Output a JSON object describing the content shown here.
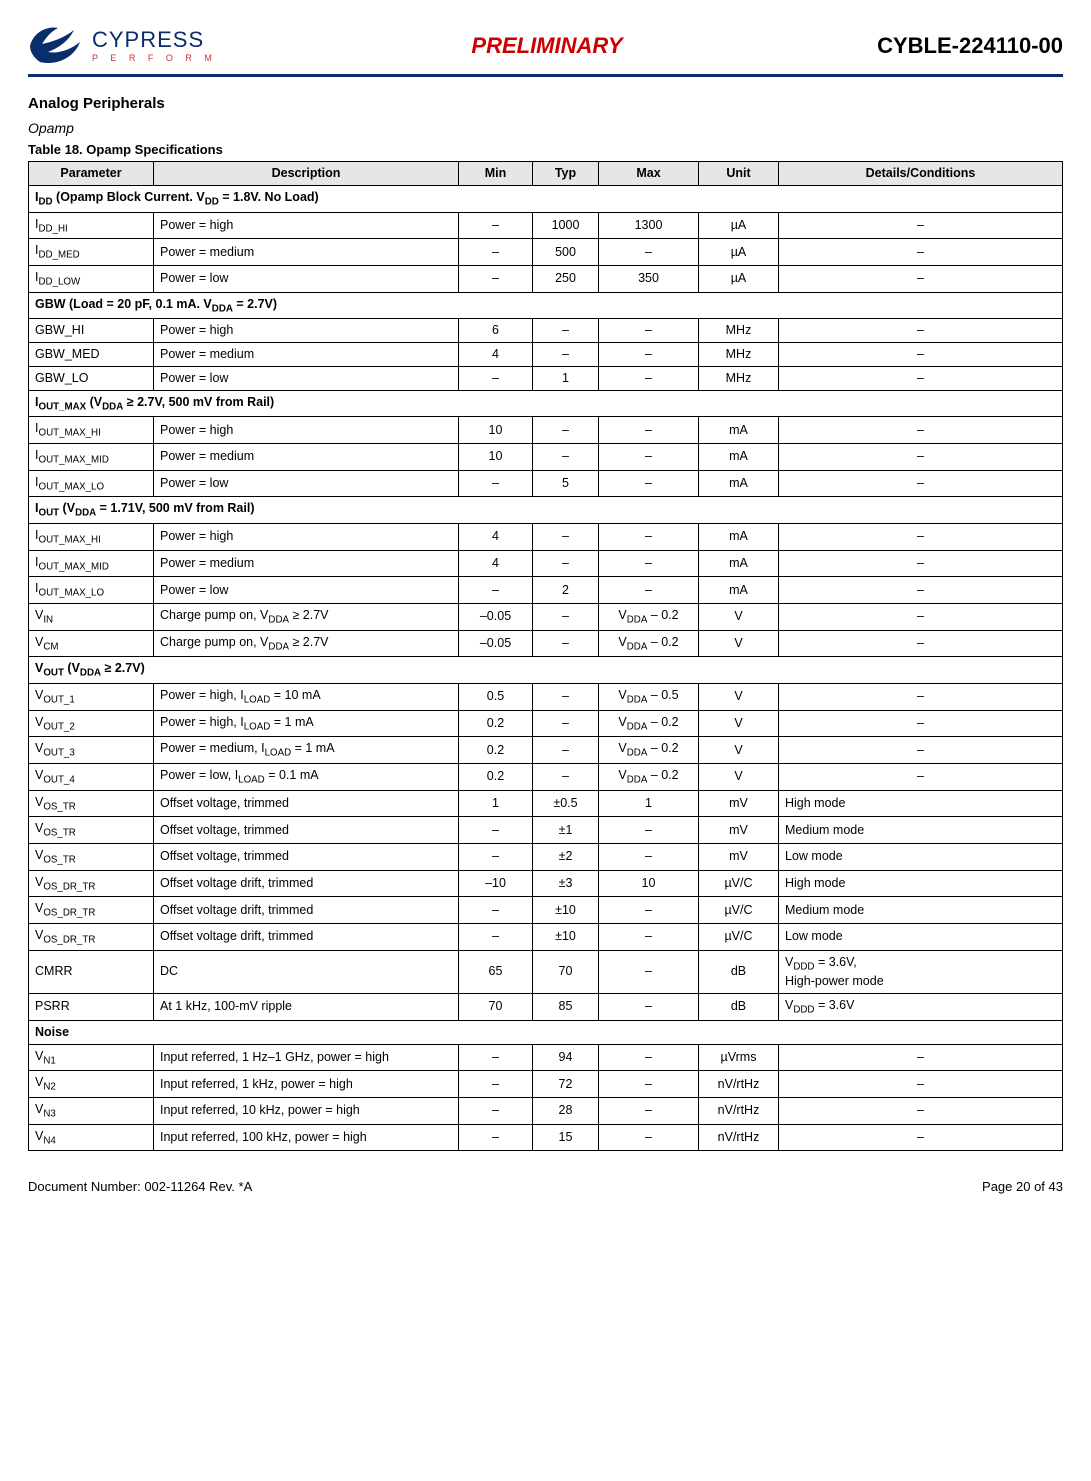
{
  "header": {
    "brand": "CYPRESS",
    "perform": "P E R F O R M",
    "preliminary": "PRELIMINARY",
    "part_number": "CYBLE-224110-00"
  },
  "section_title": "Analog Peripherals",
  "subsection_title": "Opamp",
  "table_caption": "Table 18.  Opamp Specifications",
  "columns": [
    "Parameter",
    "Description",
    "Min",
    "Typ",
    "Max",
    "Unit",
    "Details/Conditions"
  ],
  "rows": [
    {
      "type": "group",
      "html": "I<sub>DD</sub> (Opamp Block Current. V<sub>DD</sub> = 1.8V. No Load)"
    },
    {
      "type": "data",
      "param_html": "I<sub>DD_HI</sub>",
      "desc_html": "Power = high",
      "min": "–",
      "typ": "1000",
      "max": "1300",
      "unit": "µA",
      "det": "–"
    },
    {
      "type": "data",
      "param_html": "I<sub>DD_MED</sub>",
      "desc_html": "Power = medium",
      "min": "–",
      "typ": "500",
      "max": "–",
      "unit": "µA",
      "det": "–"
    },
    {
      "type": "data",
      "param_html": "I<sub>DD_LOW</sub>",
      "desc_html": "Power = low",
      "min": "–",
      "typ": "250",
      "max": "350",
      "unit": "µA",
      "det": "–"
    },
    {
      "type": "group",
      "html": "GBW (Load = 20 pF, 0.1 mA. V<sub>DDA</sub> = 2.7V)"
    },
    {
      "type": "data",
      "param_html": "GBW_HI",
      "desc_html": "Power = high",
      "min": "6",
      "typ": "–",
      "max": "–",
      "unit": "MHz",
      "det": "–"
    },
    {
      "type": "data",
      "param_html": "GBW_MED",
      "desc_html": "Power = medium",
      "min": "4",
      "typ": "–",
      "max": "–",
      "unit": "MHz",
      "det": "–"
    },
    {
      "type": "data",
      "param_html": "GBW_LO",
      "desc_html": "Power = low",
      "min": "–",
      "typ": "1",
      "max": "–",
      "unit": "MHz",
      "det": "–"
    },
    {
      "type": "group",
      "html": "I<sub>OUT_MAX</sub> (V<sub>DDA</sub> ≥ 2.7V, 500 mV from Rail)"
    },
    {
      "type": "data",
      "param_html": "I<sub>OUT_MAX_HI</sub>",
      "desc_html": "Power = high",
      "min": "10",
      "typ": "–",
      "max": "–",
      "unit": "mA",
      "det": "–"
    },
    {
      "type": "data",
      "param_html": "I<sub>OUT_MAX_MID</sub>",
      "desc_html": "Power = medium",
      "min": "10",
      "typ": "–",
      "max": "–",
      "unit": "mA",
      "det": "–"
    },
    {
      "type": "data",
      "param_html": "I<sub>OUT_MAX_LO</sub>",
      "desc_html": "Power = low",
      "min": "–",
      "typ": "5",
      "max": "–",
      "unit": "mA",
      "det": "–"
    },
    {
      "type": "group",
      "html": "I<sub>OUT</sub> (V<sub>DDA</sub> = 1.71V, 500 mV from Rail)"
    },
    {
      "type": "data",
      "param_html": "I<sub>OUT_MAX_HI</sub>",
      "desc_html": "Power = high",
      "min": "4",
      "typ": "–",
      "max": "–",
      "unit": "mA",
      "det": "–"
    },
    {
      "type": "data",
      "param_html": "I<sub>OUT_MAX_MID</sub>",
      "desc_html": "Power = medium",
      "min": "4",
      "typ": "–",
      "max": "–",
      "unit": "mA",
      "det": "–"
    },
    {
      "type": "data",
      "param_html": "I<sub>OUT_MAX_LO</sub>",
      "desc_html": "Power = low",
      "min": "–",
      "typ": "2",
      "max": "–",
      "unit": "mA",
      "det": "–"
    },
    {
      "type": "data",
      "param_html": "V<sub>IN</sub>",
      "desc_html": "Charge pump on, V<sub>DDA</sub> ≥ 2.7V",
      "min": "–0.05",
      "typ": "–",
      "max_html": "V<sub>DDA</sub> – 0.2",
      "unit": "V",
      "det": "–"
    },
    {
      "type": "data",
      "param_html": "V<sub>CM</sub>",
      "desc_html": "Charge pump on, V<sub>DDA</sub> ≥ 2.7V",
      "min": "–0.05",
      "typ": "–",
      "max_html": "V<sub>DDA</sub> – 0.2",
      "unit": "V",
      "det": "–"
    },
    {
      "type": "group",
      "html": "V<sub>OUT</sub> (V<sub>DDA</sub> ≥ 2.7V)"
    },
    {
      "type": "data",
      "param_html": "V<sub>OUT_1</sub>",
      "desc_html": "Power = high, I<sub>LOAD</sub> = 10 mA",
      "min": "0.5",
      "typ": "–",
      "max_html": "V<sub>DDA</sub> – 0.5",
      "unit": "V",
      "det": "–"
    },
    {
      "type": "data",
      "param_html": "V<sub>OUT_2</sub>",
      "desc_html": "Power = high, I<sub>LOAD</sub> = 1 mA",
      "min": "0.2",
      "typ": "–",
      "max_html": "V<sub>DDA</sub> – 0.2",
      "unit": "V",
      "det": "–"
    },
    {
      "type": "data",
      "param_html": "V<sub>OUT_3</sub>",
      "desc_html": "Power = medium, I<sub>LOAD</sub> = 1 mA",
      "min": "0.2",
      "typ": "–",
      "max_html": "V<sub>DDA</sub> – 0.2",
      "unit": "V",
      "det": "–"
    },
    {
      "type": "data",
      "param_html": "V<sub>OUT_4</sub>",
      "desc_html": "Power = low, I<sub>LOAD</sub> = 0.1 mA",
      "min": "0.2",
      "typ": "–",
      "max_html": "V<sub>DDA</sub> – 0.2",
      "unit": "V",
      "det": "–"
    },
    {
      "type": "data",
      "param_html": "V<sub>OS_TR</sub>",
      "desc_html": "Offset voltage, trimmed",
      "min": "1",
      "typ": "±0.5",
      "max": "1",
      "unit": "mV",
      "det": "High mode"
    },
    {
      "type": "data",
      "param_html": "V<sub>OS_TR</sub>",
      "desc_html": "Offset voltage, trimmed",
      "min": "–",
      "typ": "±1",
      "max": "–",
      "unit": "mV",
      "det": "Medium mode"
    },
    {
      "type": "data",
      "param_html": "V<sub>OS_TR</sub>",
      "desc_html": "Offset voltage, trimmed",
      "min": "–",
      "typ": "±2",
      "max": "–",
      "unit": "mV",
      "det": "Low mode"
    },
    {
      "type": "data",
      "param_html": "V<sub>OS_DR_TR</sub>",
      "desc_html": "Offset voltage drift, trimmed",
      "min": "–10",
      "typ": "±3",
      "max": "10",
      "unit": "µV/C",
      "det": "High mode"
    },
    {
      "type": "data",
      "param_html": "V<sub>OS_DR_TR</sub>",
      "desc_html": "Offset voltage drift, trimmed",
      "min": "–",
      "typ": "±10",
      "max": "–",
      "unit": "µV/C",
      "det": "Medium mode"
    },
    {
      "type": "data",
      "param_html": "V<sub>OS_DR_TR</sub>",
      "desc_html": "Offset voltage drift, trimmed",
      "min": "–",
      "typ": "±10",
      "max": "–",
      "unit": "µV/C",
      "det": "Low mode"
    },
    {
      "type": "data",
      "param_html": "CMRR",
      "desc_html": "DC",
      "min": "65",
      "typ": "70",
      "max": "–",
      "unit": "dB",
      "det_html": "V<sub>DDD</sub> = 3.6V,<br>High-power mode"
    },
    {
      "type": "data",
      "param_html": "PSRR",
      "desc_html": "At 1 kHz, 100-mV ripple",
      "min": "70",
      "typ": "85",
      "max": "–",
      "unit": "dB",
      "det_html": "V<sub>DDD</sub> = 3.6V"
    },
    {
      "type": "group",
      "html": "Noise"
    },
    {
      "type": "data",
      "param_html": "V<sub>N1</sub>",
      "desc_html": "Input referred, 1 Hz–1 GHz, power = high",
      "min": "–",
      "typ": "94",
      "max": "–",
      "unit": "µVrms",
      "det": "–"
    },
    {
      "type": "data",
      "param_html": "V<sub>N2</sub>",
      "desc_html": "Input referred, 1 kHz, power = high",
      "min": "–",
      "typ": "72",
      "max": "–",
      "unit": "nV/rtHz",
      "det": "–"
    },
    {
      "type": "data",
      "param_html": "V<sub>N3</sub>",
      "desc_html": "Input referred, 10 kHz, power = high",
      "min": "–",
      "typ": "28",
      "max": "–",
      "unit": "nV/rtHz",
      "det": "–"
    },
    {
      "type": "data",
      "param_html": "V<sub>N4</sub>",
      "desc_html": "Input referred, 100 kHz, power = high",
      "min": "–",
      "typ": "15",
      "max": "–",
      "unit": "nV/rtHz",
      "det": "–"
    }
  ],
  "footer": {
    "doc_number": "Document Number: 002-11264 Rev. *A",
    "page": "Page 20 of 43"
  }
}
